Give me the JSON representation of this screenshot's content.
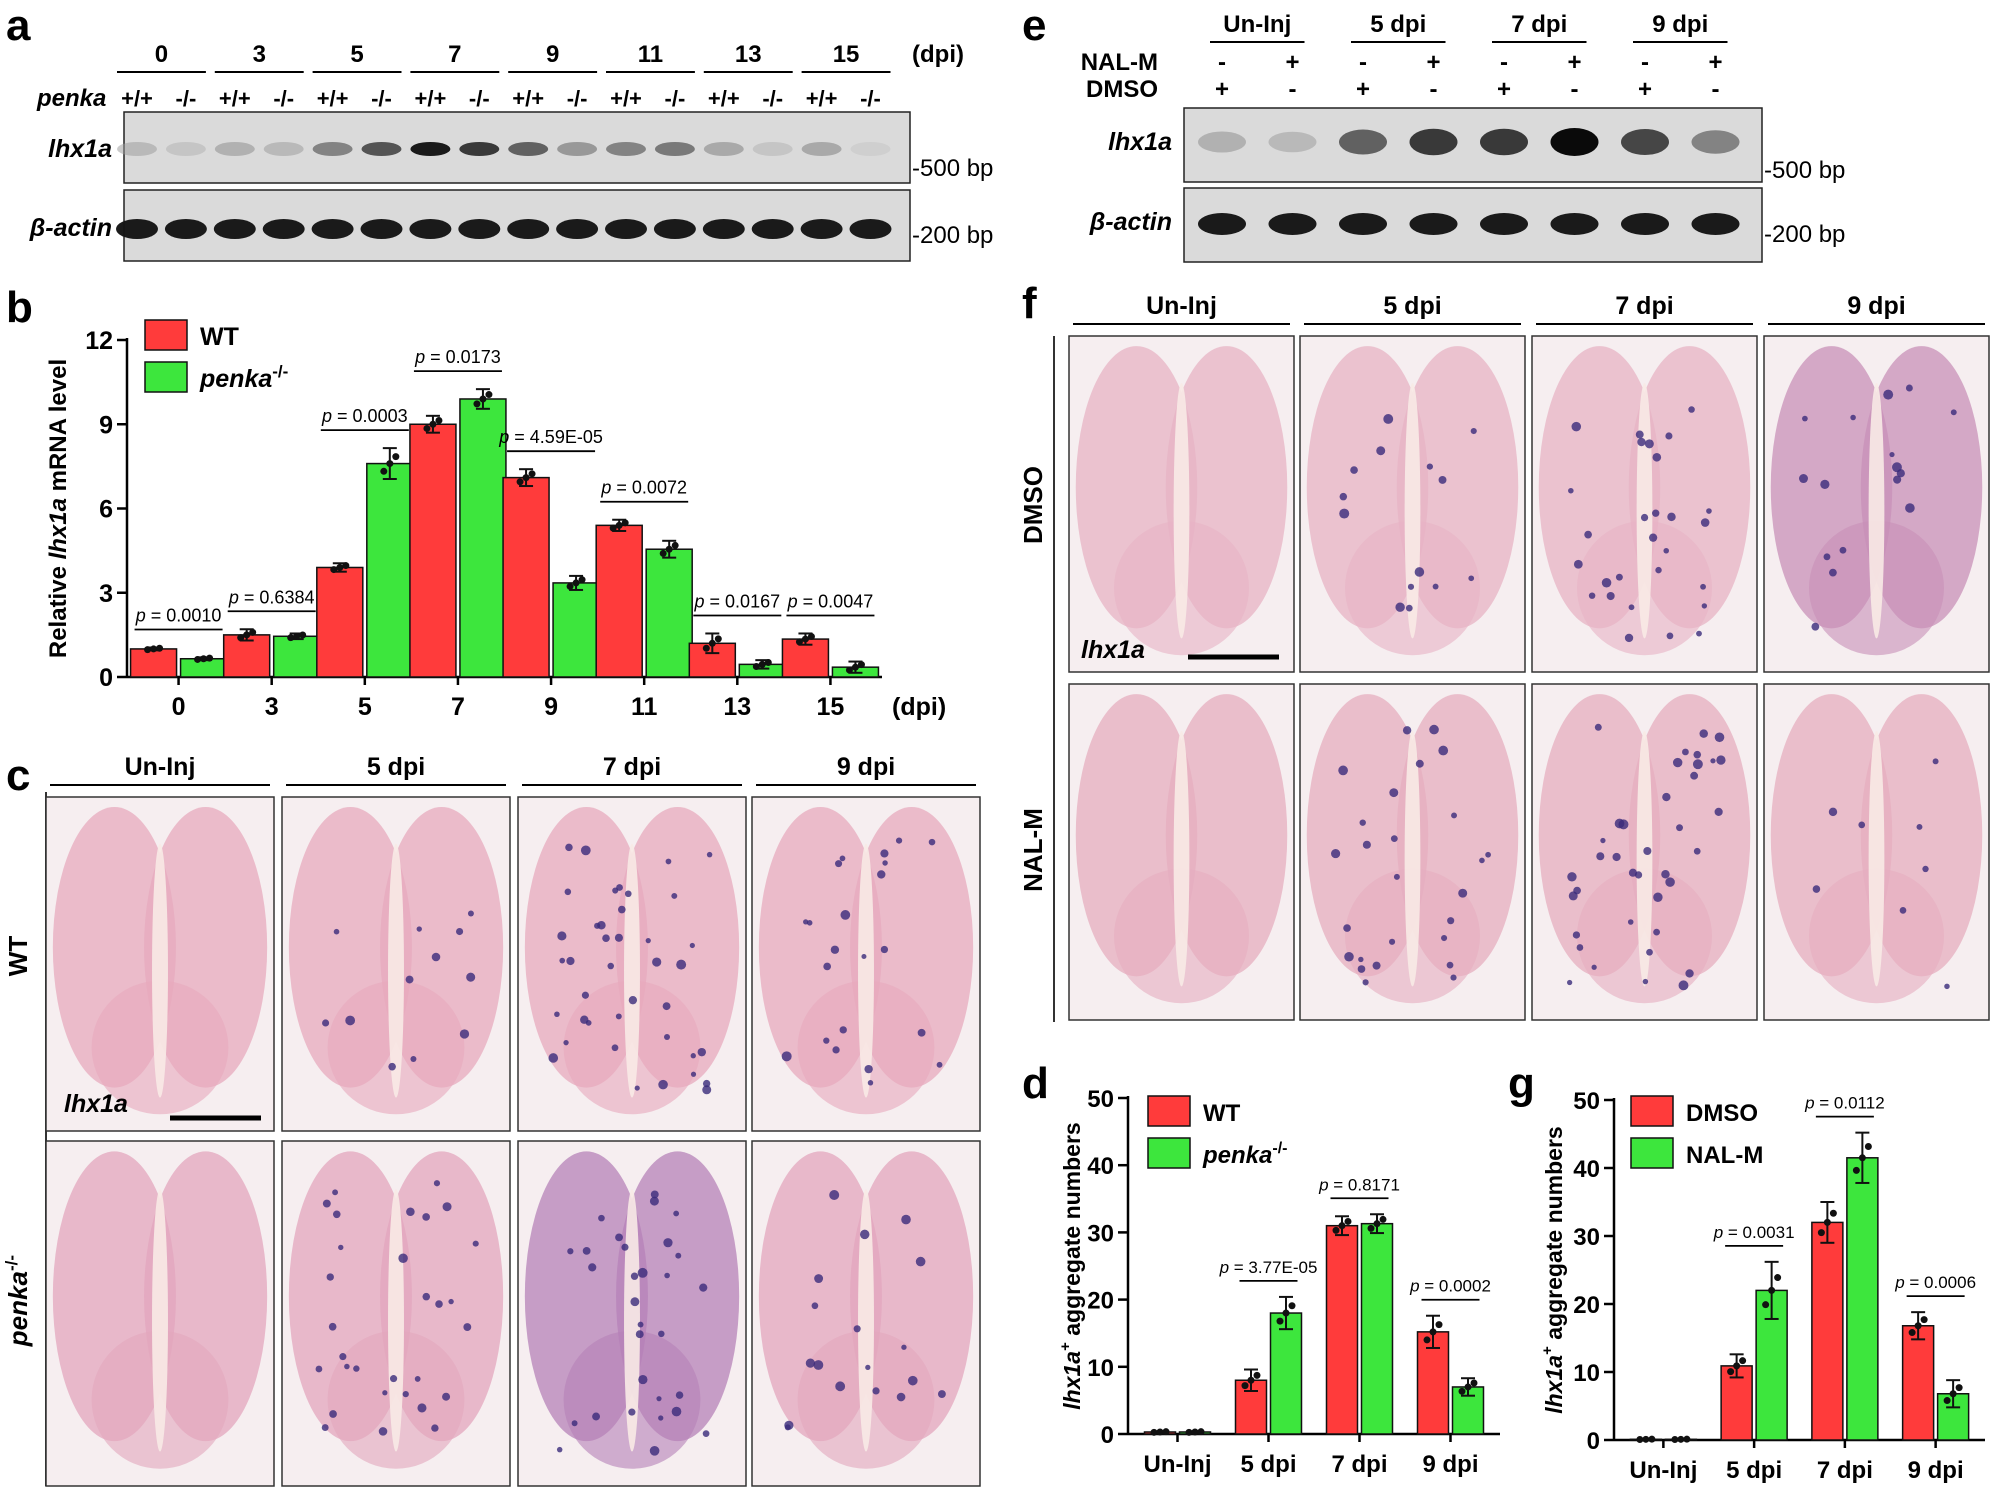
{
  "colors": {
    "wt": "#ff3b3b",
    "ko": "#3de63d",
    "gel_bg": "#d9d9d9",
    "ish_bg": "#f7ecef"
  },
  "panels": {
    "a": {
      "letter": "a",
      "groups": [
        "0",
        "3",
        "5",
        "7",
        "9",
        "11",
        "13",
        "15"
      ],
      "unit": "(dpi)",
      "genotype_label": "penka",
      "genotypes": [
        "+/+",
        "-/-"
      ],
      "rows": [
        "lhx1a",
        "β-actin"
      ],
      "markers": [
        "-500 bp",
        "-200 bp"
      ],
      "band_intensity": [
        0.25,
        0.15,
        0.3,
        0.25,
        0.55,
        0.75,
        0.95,
        0.85,
        0.7,
        0.45,
        0.55,
        0.6,
        0.35,
        0.15,
        0.35,
        0.05
      ]
    },
    "b": {
      "letter": "b"
    },
    "c": {
      "letter": "c",
      "columns": [
        "Un-Inj",
        "5 dpi",
        "7 dpi",
        "9 dpi"
      ],
      "rows": [
        "WT",
        "penka",
        "-/-"
      ],
      "probe": "lhx1a"
    },
    "d": {
      "letter": "d"
    },
    "e": {
      "letter": "e",
      "groups": [
        "Un-Inj",
        "5 dpi",
        "7 dpi",
        "9 dpi"
      ],
      "treat_rows": [
        {
          "label": "NAL-M",
          "marks": [
            "-",
            "+",
            "-",
            "+",
            "-",
            "+",
            "-",
            "+"
          ]
        },
        {
          "label": "DMSO",
          "marks": [
            "+",
            "-",
            "+",
            "-",
            "+",
            "-",
            "+",
            "-"
          ]
        }
      ],
      "rows": [
        "lhx1a",
        "β-actin"
      ],
      "markers": [
        "-500 bp",
        "-200 bp"
      ],
      "band_intensity": [
        0.3,
        0.25,
        0.7,
        0.85,
        0.85,
        1.0,
        0.8,
        0.55
      ]
    },
    "f": {
      "letter": "f",
      "columns": [
        "Un-Inj",
        "5 dpi",
        "7 dpi",
        "9 dpi"
      ],
      "rows": [
        "DMSO",
        "NAL-M"
      ],
      "probe": "lhx1a"
    },
    "g": {
      "letter": "g"
    }
  },
  "chart_data": [
    {
      "panel": "b",
      "type": "bar",
      "categories": [
        "0",
        "3",
        "5",
        "7",
        "9",
        "11",
        "13",
        "15"
      ],
      "x_unit": "(dpi)",
      "ylabel_parts": [
        "Relative ",
        "lhx1a",
        " mRNA level"
      ],
      "yticks": [
        0,
        3,
        6,
        9,
        12
      ],
      "ylim": [
        0,
        12
      ],
      "legend": [
        "WT",
        "penka",
        "-/-"
      ],
      "series": [
        {
          "name": "WT",
          "values": [
            1.0,
            1.5,
            3.9,
            9.0,
            7.1,
            5.4,
            1.2,
            1.35
          ],
          "errors": [
            0.05,
            0.2,
            0.15,
            0.3,
            0.3,
            0.2,
            0.35,
            0.2
          ]
        },
        {
          "name": "penka-/-",
          "values": [
            0.65,
            1.45,
            7.6,
            9.9,
            3.35,
            4.55,
            0.45,
            0.35
          ],
          "errors": [
            0.05,
            0.1,
            0.55,
            0.35,
            0.25,
            0.3,
            0.15,
            0.2
          ]
        }
      ],
      "pvalues": [
        "p = 0.0010",
        "p = 0.6384",
        "p = 0.0003",
        "p = 0.0173",
        "p = 4.59E-05",
        "p = 0.0072",
        "p = 0.0167",
        "p = 0.0047"
      ]
    },
    {
      "panel": "d",
      "type": "bar",
      "categories": [
        "Un-Inj",
        "5 dpi",
        "7 dpi",
        "9 dpi"
      ],
      "ylabel_parts": [
        "lhx1a",
        "+",
        " aggregate numbers"
      ],
      "yticks": [
        0,
        10,
        20,
        30,
        40,
        50
      ],
      "ylim": [
        0,
        50
      ],
      "legend": [
        "WT",
        "penka",
        "-/-"
      ],
      "series": [
        {
          "name": "WT",
          "values": [
            0.3,
            8.0,
            31.0,
            15.2
          ],
          "errors": [
            0.1,
            1.6,
            1.4,
            2.4
          ]
        },
        {
          "name": "penka-/-",
          "values": [
            0.3,
            18.0,
            31.3,
            7.0
          ],
          "errors": [
            0.1,
            2.4,
            1.4,
            1.3
          ]
        }
      ],
      "pvalues": [
        "p = 3.77E-05",
        "p = 0.8171",
        "p = 0.0002"
      ]
    },
    {
      "panel": "g",
      "type": "bar",
      "categories": [
        "Un-Inj",
        "5 dpi",
        "7 dpi",
        "9 dpi"
      ],
      "ylabel_parts": [
        "lhx1a",
        "+",
        " aggregate numbers"
      ],
      "yticks": [
        0,
        10,
        20,
        30,
        40,
        50
      ],
      "ylim": [
        0,
        50
      ],
      "legend": [
        "DMSO",
        "NAL-M"
      ],
      "series": [
        {
          "name": "DMSO",
          "values": [
            0.1,
            10.9,
            32.0,
            16.8
          ],
          "errors": [
            0.05,
            1.7,
            3.0,
            2.0
          ]
        },
        {
          "name": "NAL-M",
          "values": [
            0.1,
            22.0,
            41.5,
            6.8
          ],
          "errors": [
            0.05,
            4.2,
            3.7,
            2.0
          ]
        }
      ],
      "pvalues": [
        "p = 0.0031",
        "p = 0.0112",
        "p = 0.0006"
      ]
    }
  ]
}
